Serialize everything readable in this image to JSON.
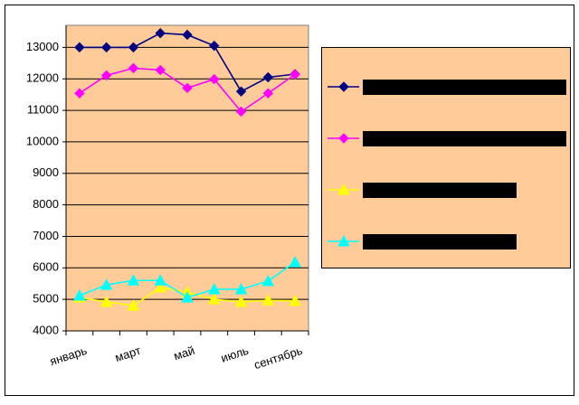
{
  "chart_data": {
    "type": "line",
    "categories": [
      "январь",
      null,
      "март",
      null,
      "май",
      null,
      "июль",
      null,
      "сентябрь"
    ],
    "series": [
      {
        "color": "#000080",
        "marker": "diamond",
        "values": [
          13000,
          13000,
          13000,
          13450,
          13400,
          13050,
          11600,
          12050,
          12150
        ]
      },
      {
        "color": "#ff00ff",
        "marker": "diamond",
        "values": [
          11540,
          12110,
          12340,
          12280,
          11710,
          11990,
          10960,
          11540,
          12140
        ]
      },
      {
        "color": "#ffff00",
        "marker": "triangle",
        "values": [
          5060,
          4920,
          4800,
          5380,
          5230,
          5000,
          4920,
          4970,
          4950
        ]
      },
      {
        "color": "#00ffff",
        "marker": "triangle",
        "values": [
          5120,
          5460,
          5600,
          5600,
          5060,
          5320,
          5320,
          5580,
          6180
        ]
      }
    ],
    "ylim": [
      4000,
      13700
    ],
    "yticks": [
      4000,
      5000,
      6000,
      7000,
      8000,
      9000,
      10000,
      11000,
      12000,
      13000
    ],
    "grid": true,
    "background": "#ffcc99"
  }
}
